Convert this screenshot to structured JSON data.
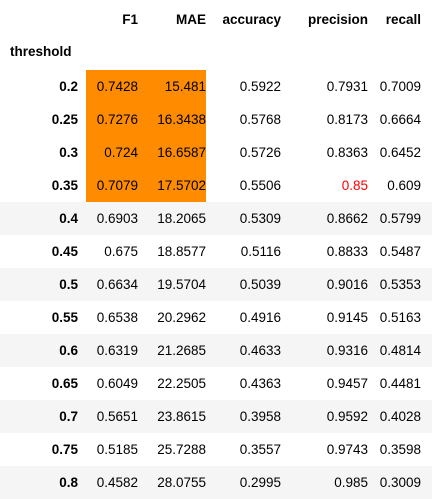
{
  "table": {
    "index_name": "threshold",
    "columns": [
      "F1",
      "MAE",
      "accuracy",
      "precision",
      "recall"
    ],
    "rows": [
      {
        "threshold": "0.2",
        "F1": "0.7428",
        "MAE": "15.481",
        "accuracy": "0.5922",
        "precision": "0.7931",
        "recall": "0.7009"
      },
      {
        "threshold": "0.25",
        "F1": "0.7276",
        "MAE": "16.3438",
        "accuracy": "0.5768",
        "precision": "0.8173",
        "recall": "0.6664"
      },
      {
        "threshold": "0.3",
        "F1": "0.724",
        "MAE": "16.6587",
        "accuracy": "0.5726",
        "precision": "0.8363",
        "recall": "0.6452"
      },
      {
        "threshold": "0.35",
        "F1": "0.7079",
        "MAE": "17.5702",
        "accuracy": "0.5506",
        "precision": "0.85",
        "recall": "0.609"
      },
      {
        "threshold": "0.4",
        "F1": "0.6903",
        "MAE": "18.2065",
        "accuracy": "0.5309",
        "precision": "0.8662",
        "recall": "0.5799"
      },
      {
        "threshold": "0.45",
        "F1": "0.675",
        "MAE": "18.8577",
        "accuracy": "0.5116",
        "precision": "0.8833",
        "recall": "0.5487"
      },
      {
        "threshold": "0.5",
        "F1": "0.6634",
        "MAE": "19.5704",
        "accuracy": "0.5039",
        "precision": "0.9016",
        "recall": "0.5353"
      },
      {
        "threshold": "0.55",
        "F1": "0.6538",
        "MAE": "20.2962",
        "accuracy": "0.4916",
        "precision": "0.9145",
        "recall": "0.5163"
      },
      {
        "threshold": "0.6",
        "F1": "0.6319",
        "MAE": "21.2685",
        "accuracy": "0.4633",
        "precision": "0.9316",
        "recall": "0.4814"
      },
      {
        "threshold": "0.65",
        "F1": "0.6049",
        "MAE": "22.2505",
        "accuracy": "0.4363",
        "precision": "0.9457",
        "recall": "0.4481"
      },
      {
        "threshold": "0.7",
        "F1": "0.5651",
        "MAE": "23.8615",
        "accuracy": "0.3958",
        "precision": "0.9592",
        "recall": "0.4028"
      },
      {
        "threshold": "0.75",
        "F1": "0.5185",
        "MAE": "25.7288",
        "accuracy": "0.3557",
        "precision": "0.9743",
        "recall": "0.3598"
      },
      {
        "threshold": "0.8",
        "F1": "0.4582",
        "MAE": "28.0755",
        "accuracy": "0.2995",
        "precision": "0.985",
        "recall": "0.3009"
      }
    ],
    "highlight": {
      "color": "#ff8c00",
      "columns": [
        "F1",
        "MAE"
      ],
      "row_count": 4
    },
    "red_cells": [
      {
        "row": 3,
        "column": "precision",
        "color": "#ff0000"
      }
    ],
    "stripe_color": "#f5f5f5"
  }
}
